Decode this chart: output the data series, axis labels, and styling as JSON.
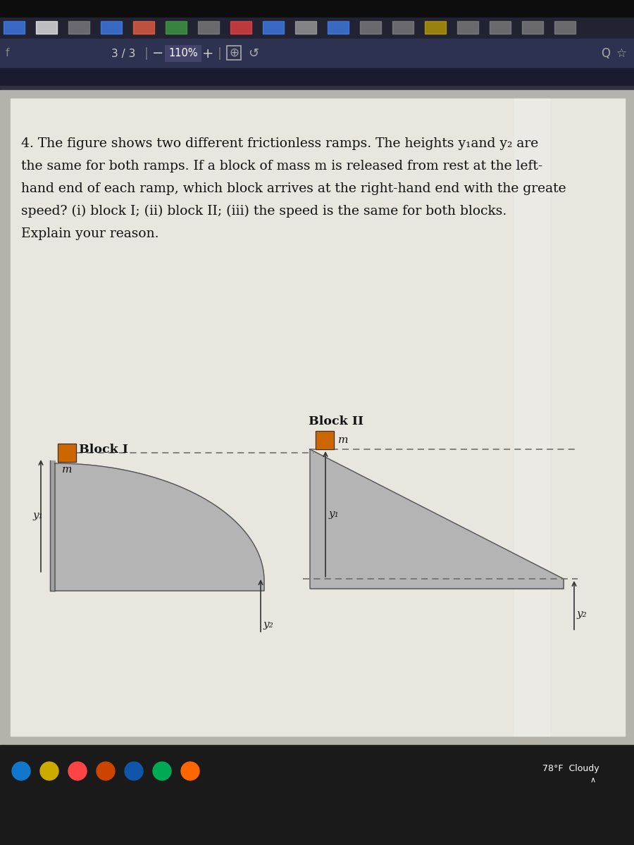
{
  "bg_very_top": "#111111",
  "bg_toolbar": "#2d3250",
  "bg_dark_bar": "#1e1f2e",
  "bg_separator": "#3a3f5c",
  "page_outer_bg": "#b8b5ae",
  "page_inner_bg": "#e8e6df",
  "page_inner_bg2": "#eeece6",
  "text_color": "#111111",
  "toolbar_text": "#cccccc",
  "ramp_fill": "#b4b4b4",
  "ramp_stroke": "#555555",
  "block_color": "#cc6600",
  "block_stroke": "#333333",
  "dashed_color": "#666666",
  "arrow_color": "#333333",
  "label_block1": "Block I",
  "label_block2": "Block II",
  "label_m": "m",
  "label_y1": "y₁",
  "label_y2": "y₂",
  "toolbar_left": "3 / 3",
  "toolbar_mid": "110%",
  "taskbar_bg": "#1a1a1a",
  "taskbar_status": "78°F  Cloudy",
  "q_line1": "4. The figure shows two different frictionless ramps. The heights y₁and y₂ are",
  "q_line2": "the same for both ramps. If a block of mass m is released from rest at the left-",
  "q_line3": "hand end of each ramp, which block arrives at the right-hand end with the greate",
  "q_line4": "speed? (i) block I; (ii) block II; (iii) the speed is the same for both blocks.",
  "q_line5": "Explain your reason."
}
